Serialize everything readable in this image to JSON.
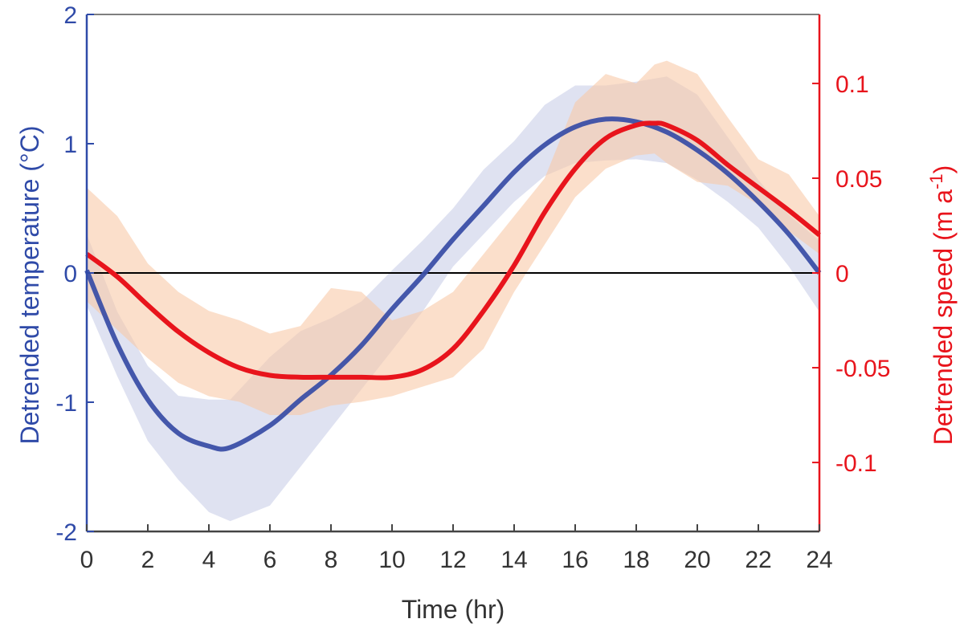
{
  "chart_data": {
    "type": "line",
    "xlabel": "Time (hr)",
    "ylabel_left": "Detrended temperature (°C)",
    "ylabel_right": "Detrended speed (m a-1)",
    "xlim": [
      0,
      24
    ],
    "ylim_left": [
      -2,
      2
    ],
    "ylim_right": [
      -0.1364,
      0.1364
    ],
    "x_ticks": [
      "0",
      "2",
      "4",
      "6",
      "8",
      "10",
      "12",
      "14",
      "16",
      "18",
      "20",
      "22",
      "24"
    ],
    "y_ticks_left": [
      "-2",
      "-1",
      "0",
      "1",
      "2"
    ],
    "y_ticks_right": [
      "-0.1",
      "-0.05",
      "0",
      "0.05",
      "0.1"
    ],
    "zero_line": true,
    "grid": false,
    "colors": {
      "temperature": "#3b4fa6",
      "speed": "#e8141c",
      "temperature_band": "#c9cfe8",
      "speed_band": "#f9c9a8",
      "left_axis": "#2f4aa8",
      "right_axis": "#e8141c",
      "tick_text": "#333333"
    },
    "series": [
      {
        "axis": "left",
        "x": [
          0,
          1,
          2,
          3,
          4,
          4.7,
          6,
          7,
          8,
          9,
          10,
          11,
          12,
          13,
          14,
          15,
          16,
          17,
          18,
          19,
          20,
          21,
          22,
          23,
          24
        ],
        "values": [
          0.02,
          -0.55,
          -0.98,
          -1.24,
          -1.34,
          -1.35,
          -1.18,
          -0.98,
          -0.79,
          -0.56,
          -0.28,
          -0.02,
          0.26,
          0.52,
          0.78,
          0.99,
          1.13,
          1.19,
          1.17,
          1.09,
          0.95,
          0.77,
          0.55,
          0.3,
          0.0
        ],
        "band_low": [
          -0.25,
          -0.8,
          -1.3,
          -1.6,
          -1.85,
          -1.92,
          -1.8,
          -1.5,
          -1.2,
          -0.9,
          -0.6,
          -0.3,
          0.05,
          0.3,
          0.55,
          0.75,
          0.85,
          0.87,
          0.88,
          0.85,
          0.72,
          0.55,
          0.35,
          0.05,
          -0.3
        ],
        "band_high": [
          0.3,
          -0.3,
          -0.72,
          -0.95,
          -0.98,
          -0.98,
          -0.65,
          -0.45,
          -0.35,
          -0.22,
          0.02,
          0.25,
          0.5,
          0.8,
          1.02,
          1.3,
          1.45,
          1.45,
          1.48,
          1.52,
          1.38,
          1.05,
          0.72,
          0.45,
          0.25
        ]
      },
      {
        "axis": "right",
        "x": [
          0,
          1,
          2,
          3,
          4,
          5,
          6,
          7,
          8,
          9,
          10,
          11,
          12,
          13,
          14,
          15,
          16,
          17,
          18,
          18.6,
          19,
          20,
          21,
          22,
          23,
          24
        ],
        "values": [
          0.01,
          -0.002,
          -0.017,
          -0.031,
          -0.042,
          -0.05,
          -0.054,
          -0.055,
          -0.055,
          -0.055,
          -0.055,
          -0.051,
          -0.04,
          -0.02,
          0.004,
          0.032,
          0.055,
          0.071,
          0.078,
          0.079,
          0.078,
          0.07,
          0.057,
          0.045,
          0.033,
          0.02
        ],
        "band_low": [
          -0.015,
          -0.03,
          -0.045,
          -0.058,
          -0.065,
          -0.068,
          -0.075,
          -0.075,
          -0.07,
          -0.068,
          -0.065,
          -0.06,
          -0.055,
          -0.04,
          -0.01,
          0.015,
          0.04,
          0.055,
          0.062,
          0.063,
          0.058,
          0.048,
          0.046,
          0.036,
          0.022,
          0.01
        ],
        "band_high": [
          0.045,
          0.03,
          0.005,
          -0.01,
          -0.02,
          -0.025,
          -0.032,
          -0.028,
          -0.008,
          -0.01,
          -0.025,
          -0.02,
          -0.01,
          0.01,
          0.03,
          0.05,
          0.09,
          0.105,
          0.1,
          0.11,
          0.112,
          0.105,
          0.082,
          0.06,
          0.052,
          0.03
        ]
      }
    ]
  }
}
